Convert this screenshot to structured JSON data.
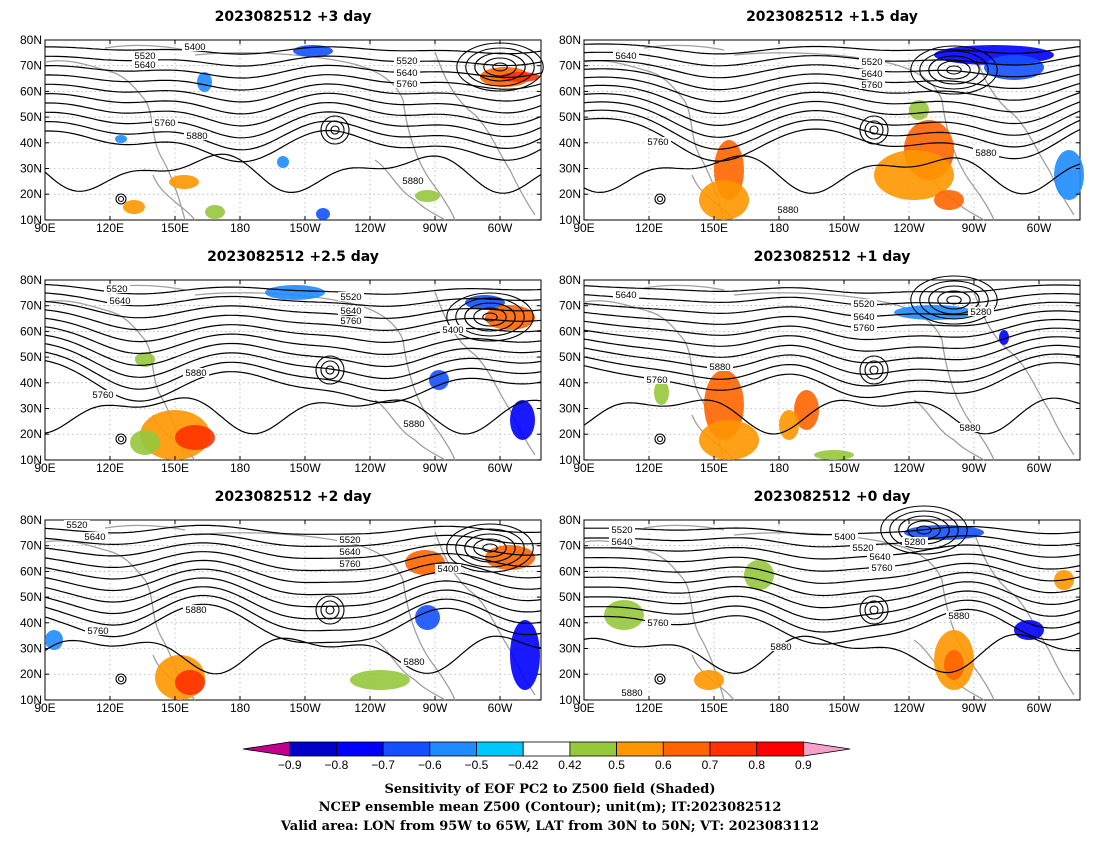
{
  "panels": [
    {
      "title": "2023082512  +3 day",
      "contour_labels": [
        "5400",
        "5520",
        "5640",
        "5520",
        "5640",
        "5760",
        "5760",
        "5880",
        "5880"
      ]
    },
    {
      "title": "2023082512  +1.5 day",
      "contour_labels": [
        "5640",
        "5520",
        "5640",
        "5760",
        "5760",
        "5880",
        "5880"
      ]
    },
    {
      "title": "2023082512  +2.5 day",
      "contour_labels": [
        "5520",
        "5640",
        "5520",
        "5640",
        "5760",
        "5400",
        "5760",
        "5880",
        "5880"
      ]
    },
    {
      "title": "2023082512  +1 day",
      "contour_labels": [
        "5640",
        "5520",
        "5640",
        "5760",
        "5280",
        "5760",
        "5880",
        "5880"
      ]
    },
    {
      "title": "2023082512  +2 day",
      "contour_labels": [
        "5520",
        "5640",
        "5520",
        "5640",
        "5760",
        "5400",
        "5760",
        "5880",
        "5880"
      ]
    },
    {
      "title": "2023082512  +0 day",
      "contour_labels": [
        "5520",
        "5640",
        "5400",
        "5280",
        "5520",
        "5640",
        "5760",
        "5880",
        "5760",
        "5880",
        "5880"
      ]
    }
  ],
  "axes": {
    "lat_labels": [
      "80N",
      "70N",
      "60N",
      "50N",
      "40N",
      "30N",
      "20N",
      "10N"
    ],
    "lon_labels": [
      "90E",
      "120E",
      "150E",
      "180",
      "150W",
      "120W",
      "90W",
      "60W"
    ]
  },
  "colorbar": {
    "labels": [
      "−0.9",
      "−0.8",
      "−0.7",
      "−0.6",
      "−0.5",
      "−0.42",
      "0.42",
      "0.5",
      "0.6",
      "0.7",
      "0.8",
      "0.9"
    ],
    "colors": [
      "#c0008c",
      "#0000c8",
      "#0000ff",
      "#1450ff",
      "#1e8cff",
      "#00c8ff",
      "#ffffff",
      "#96c83c",
      "#ff9600",
      "#ff6400",
      "#ff3200",
      "#ff0000",
      "#f5a0c8"
    ]
  },
  "caption": {
    "line1": "Sensitivity of EOF PC2 to Z500 field (Shaded)",
    "line2": "NCEP ensemble mean Z500 (Contour); unit(m); IT:2023082512",
    "line3": "Valid area: LON from 95W to 65W, LAT from 30N to 50N; VT: 2023083112"
  },
  "colors": {
    "contour": "#000000",
    "coastline": "#a0a0a0",
    "grid": "#999999"
  }
}
